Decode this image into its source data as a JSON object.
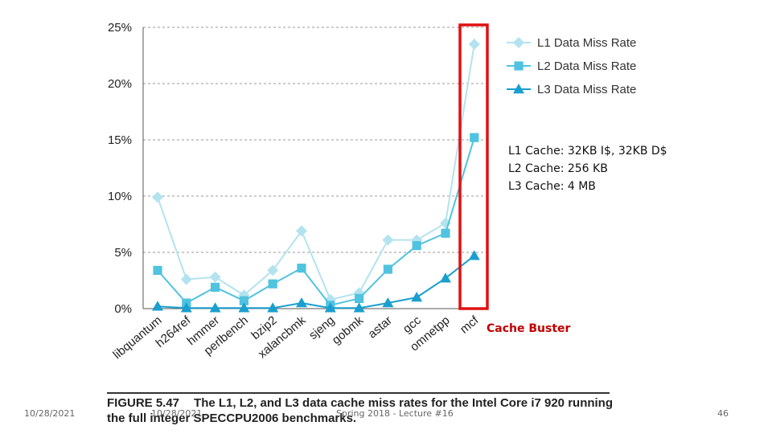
{
  "chart_data": {
    "type": "line",
    "categories": [
      "libquantum",
      "h264ref",
      "hmmer",
      "perlbench",
      "bzip2",
      "xalancbmk",
      "sjeng",
      "gobmk",
      "astar",
      "gcc",
      "omnetpp",
      "mcf"
    ],
    "series": [
      {
        "name": "L1 Data Miss Rate",
        "color": "#b3e3ef",
        "marker": "diamond",
        "values": [
          9.9,
          2.6,
          2.8,
          1.2,
          3.4,
          6.9,
          0.8,
          1.4,
          6.1,
          6.1,
          7.6,
          23.5
        ]
      },
      {
        "name": "L2 Data Miss Rate",
        "color": "#4fc3e0",
        "marker": "square",
        "values": [
          3.4,
          0.5,
          1.9,
          0.7,
          2.2,
          3.6,
          0.3,
          0.9,
          3.5,
          5.6,
          6.7,
          15.2
        ]
      },
      {
        "name": "L3 Data Miss Rate",
        "color": "#1a9fcf",
        "marker": "triangle",
        "values": [
          0.2,
          0.05,
          0.05,
          0.05,
          0.05,
          0.5,
          0.05,
          0.05,
          0.5,
          1.0,
          2.7,
          4.7
        ]
      }
    ],
    "yticks": [
      "25%",
      "20%",
      "15%",
      "10%",
      "5%",
      "0%"
    ],
    "ylim": [
      0,
      25
    ],
    "grid": true,
    "legend": "top-right",
    "highlight_category": "mcf",
    "highlight_color": "#e01010"
  },
  "notes": [
    "L1 Cache: 32KB I$, 32KB D$",
    "L2 Cache: 256 KB",
    "L3 Cache: 4 MB"
  ],
  "annotation": "Cache Buster",
  "caption": {
    "figure": "FIGURE 5.47",
    "text": "The L1, L2, and L3 data cache miss rates for the Intel Core i7 920 running the full integer SPECCPU2006 benchmarks."
  },
  "footer": {
    "date_left": "10/28/2021",
    "date_center": "10/28/2021",
    "lecture": "Spring 2018 - Lecture #16",
    "page": "46"
  }
}
